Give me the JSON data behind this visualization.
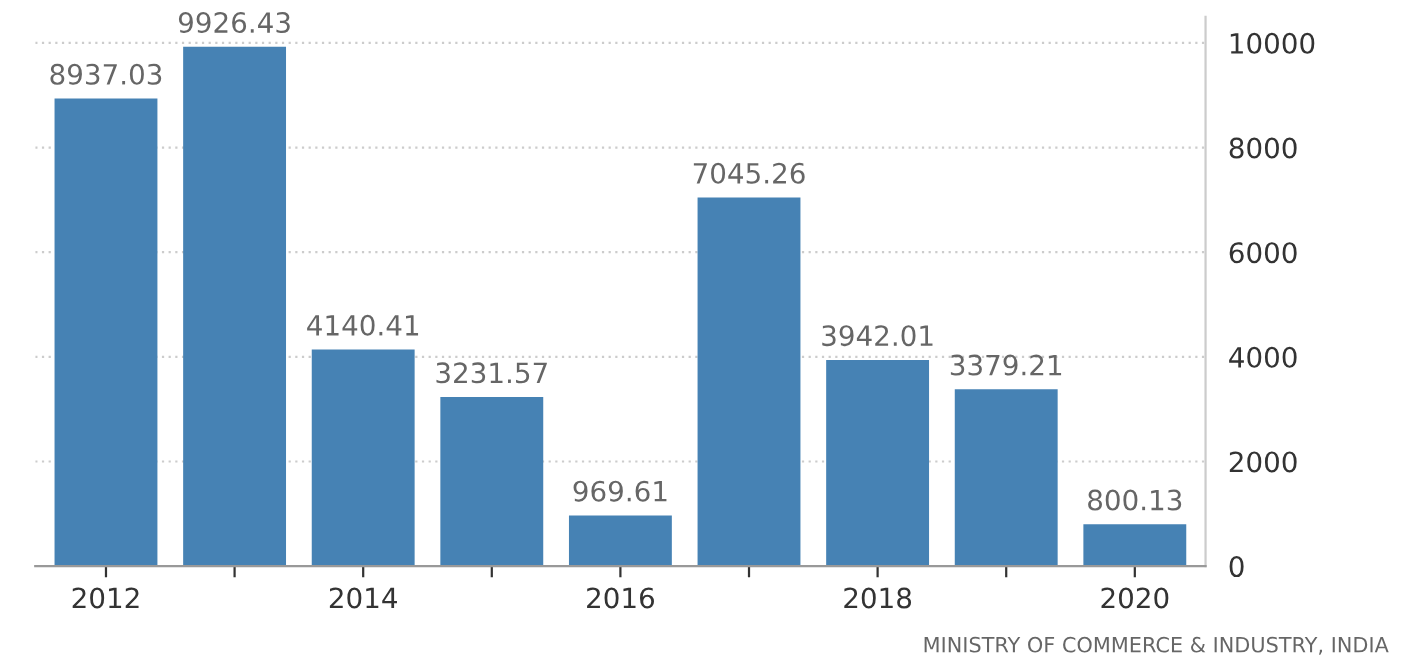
{
  "chart_data": {
    "type": "bar",
    "categories": [
      "2012",
      null,
      "2014",
      null,
      "2016",
      null,
      "2018",
      null,
      "2020"
    ],
    "values": [
      8937.03,
      9926.43,
      4140.41,
      3231.57,
      969.61,
      7045.26,
      3942.01,
      3379.21,
      800.13
    ],
    "color": "#4682b4",
    "ylim": [
      0,
      10500
    ],
    "yticks": [
      0,
      2000,
      4000,
      6000,
      8000,
      10000
    ],
    "grid": "y",
    "data_labels": true,
    "annotations": [
      "MINISTRY OF COMMERCE & INDUSTRY, INDIA"
    ]
  }
}
